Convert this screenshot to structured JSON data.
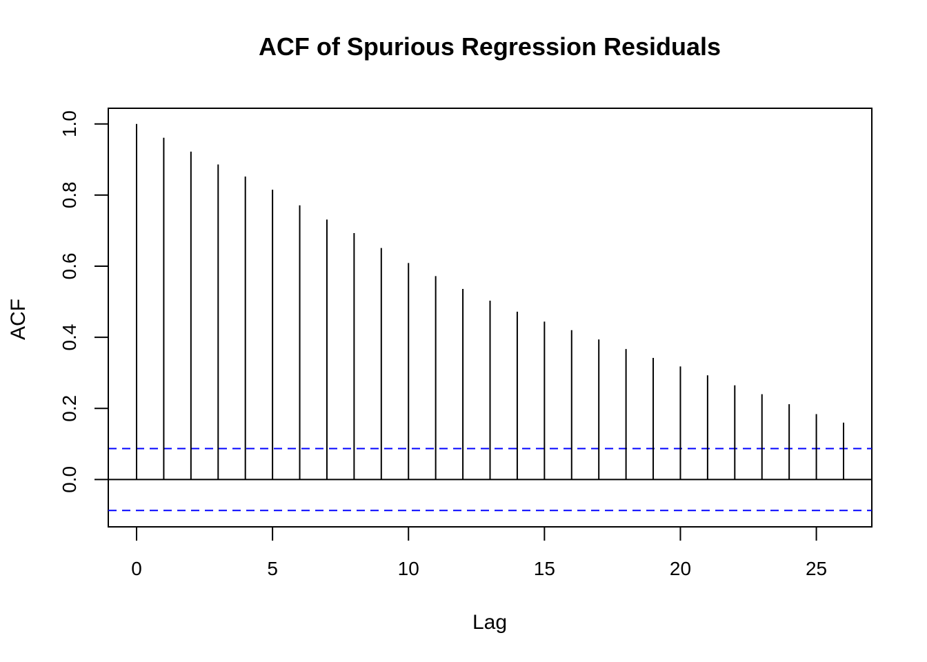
{
  "chart_data": {
    "type": "bar",
    "title": "ACF of Spurious Regression Residuals",
    "xlabel": "Lag",
    "ylabel": "ACF",
    "lags": [
      0,
      1,
      2,
      3,
      4,
      5,
      6,
      7,
      8,
      9,
      10,
      11,
      12,
      13,
      14,
      15,
      16,
      17,
      18,
      19,
      20,
      21,
      22,
      23,
      24,
      25,
      26
    ],
    "values": [
      1.0,
      0.961,
      0.922,
      0.886,
      0.852,
      0.815,
      0.771,
      0.731,
      0.693,
      0.651,
      0.609,
      0.572,
      0.536,
      0.503,
      0.472,
      0.444,
      0.42,
      0.394,
      0.367,
      0.342,
      0.318,
      0.293,
      0.265,
      0.24,
      0.212,
      0.184,
      0.16
    ],
    "confidence_bound": 0.087,
    "confidence_color": "#0000ff",
    "bar_color": "#000000",
    "xlim": [
      -1.04,
      27.04
    ],
    "ylim": [
      -0.133,
      1.044
    ],
    "xticks": [
      0,
      5,
      10,
      15,
      20,
      25
    ],
    "xtick_labels": [
      "0",
      "5",
      "10",
      "15",
      "20",
      "25"
    ],
    "yticks": [
      0.0,
      0.2,
      0.4,
      0.6,
      0.8,
      1.0
    ],
    "ytick_labels": [
      "0.0",
      "0.2",
      "0.4",
      "0.6",
      "0.8",
      "1.0"
    ],
    "grid": false,
    "legend": "none"
  }
}
